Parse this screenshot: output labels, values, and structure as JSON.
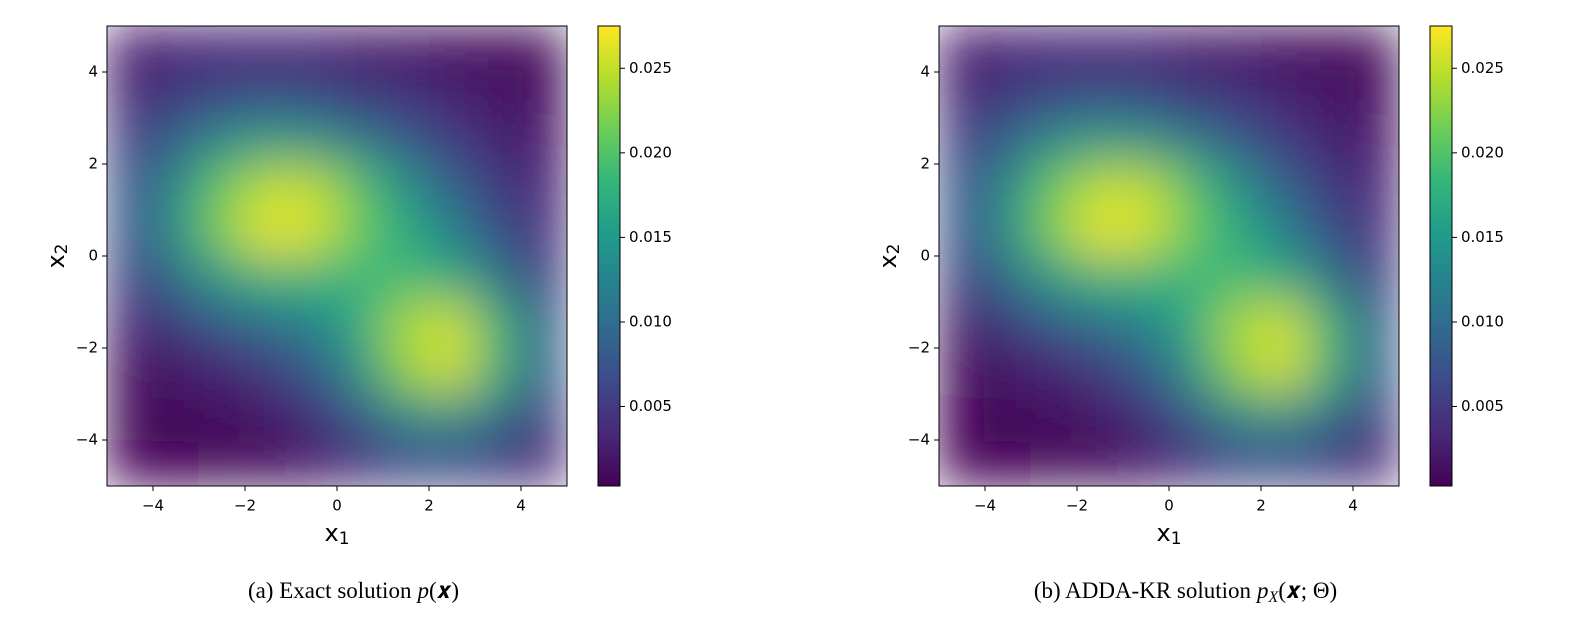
{
  "chart_data": [
    {
      "type": "heatmap",
      "xlabel": {
        "main": "x",
        "sub": "1"
      },
      "ylabel": {
        "main": "x",
        "sub": "2"
      },
      "caption": {
        "prefix": "(a) Exact solution",
        "math": "p",
        "math_end": "(𝒙)"
      },
      "xlim": [
        -5,
        5
      ],
      "ylim": [
        -5,
        5
      ],
      "xticks": [
        {
          "value": -4,
          "label": "−4"
        },
        {
          "value": -2,
          "label": "−2"
        },
        0,
        2,
        4
      ],
      "yticks": [
        {
          "value": -4,
          "label": "−4"
        },
        {
          "value": -2,
          "label": "−2"
        },
        0,
        2,
        4
      ],
      "x": [
        -4.5,
        -3.5,
        -2.5,
        -1.5,
        -0.5,
        0.5,
        1.5,
        2.5,
        3.5,
        4.5
      ],
      "y": [
        4.5,
        3.5,
        2.5,
        1.5,
        0.5,
        -0.5,
        -1.5,
        -2.5,
        -3.5,
        -4.5
      ],
      "z": [
        [
          0.002,
          0.003,
          0.003,
          0.003,
          0.003,
          0.002,
          0.002,
          0.001,
          0.001,
          0.001
        ],
        [
          0.003,
          0.005,
          0.006,
          0.007,
          0.006,
          0.005,
          0.004,
          0.003,
          0.002,
          0.001
        ],
        [
          0.005,
          0.009,
          0.013,
          0.015,
          0.014,
          0.011,
          0.008,
          0.005,
          0.003,
          0.002
        ],
        [
          0.007,
          0.013,
          0.021,
          0.025,
          0.025,
          0.02,
          0.014,
          0.009,
          0.005,
          0.003
        ],
        [
          0.007,
          0.014,
          0.022,
          0.027,
          0.026,
          0.021,
          0.017,
          0.012,
          0.007,
          0.004
        ],
        [
          0.005,
          0.01,
          0.015,
          0.018,
          0.018,
          0.018,
          0.019,
          0.017,
          0.011,
          0.005
        ],
        [
          0.003,
          0.005,
          0.008,
          0.01,
          0.012,
          0.017,
          0.024,
          0.026,
          0.018,
          0.008
        ],
        [
          0.001,
          0.002,
          0.003,
          0.005,
          0.008,
          0.014,
          0.023,
          0.026,
          0.018,
          0.008
        ],
        [
          0.001,
          0.001,
          0.001,
          0.002,
          0.004,
          0.008,
          0.013,
          0.014,
          0.01,
          0.005
        ],
        [
          0.0005,
          0.0005,
          0.001,
          0.001,
          0.002,
          0.004,
          0.006,
          0.006,
          0.005,
          0.003
        ]
      ],
      "clim": [
        0.0003,
        0.0275
      ],
      "cticks": [
        0.005,
        {
          "value": 0.01,
          "label": "0.010"
        },
        0.015,
        {
          "value": 0.02,
          "label": "0.020"
        },
        0.025
      ],
      "colormap": [
        "#440154",
        "#482878",
        "#3e4989",
        "#31688e",
        "#26828e",
        "#1f9e89",
        "#35b779",
        "#6ece58",
        "#b5de2b",
        "#fde725"
      ]
    },
    {
      "type": "heatmap",
      "xlabel": {
        "main": "x",
        "sub": "1"
      },
      "ylabel": {
        "main": "x",
        "sub": "2"
      },
      "caption": {
        "prefix": "(b) ADDA-KR solution",
        "math": "p",
        "math_sub": "X",
        "math_end": "(𝒙; Θ)"
      },
      "xlim": [
        -5,
        5
      ],
      "ylim": [
        -5,
        5
      ],
      "xticks": [
        {
          "value": -4,
          "label": "−4"
        },
        {
          "value": -2,
          "label": "−2"
        },
        0,
        2,
        4
      ],
      "yticks": [
        {
          "value": -4,
          "label": "−4"
        },
        {
          "value": -2,
          "label": "−2"
        },
        0,
        2,
        4
      ],
      "x": [
        -4.5,
        -3.5,
        -2.5,
        -1.5,
        -0.5,
        0.5,
        1.5,
        2.5,
        3.5,
        4.5
      ],
      "y": [
        4.5,
        3.5,
        2.5,
        1.5,
        0.5,
        -0.5,
        -1.5,
        -2.5,
        -3.5,
        -4.5
      ],
      "z": [
        [
          0.002,
          0.003,
          0.003,
          0.003,
          0.003,
          0.002,
          0.002,
          0.001,
          0.001,
          0.001
        ],
        [
          0.003,
          0.005,
          0.006,
          0.007,
          0.006,
          0.005,
          0.004,
          0.003,
          0.002,
          0.001
        ],
        [
          0.005,
          0.009,
          0.013,
          0.015,
          0.014,
          0.011,
          0.008,
          0.005,
          0.003,
          0.002
        ],
        [
          0.007,
          0.013,
          0.021,
          0.025,
          0.025,
          0.02,
          0.014,
          0.009,
          0.005,
          0.003
        ],
        [
          0.007,
          0.014,
          0.022,
          0.027,
          0.026,
          0.021,
          0.017,
          0.012,
          0.007,
          0.004
        ],
        [
          0.005,
          0.01,
          0.015,
          0.018,
          0.018,
          0.018,
          0.019,
          0.017,
          0.011,
          0.005
        ],
        [
          0.002,
          0.005,
          0.008,
          0.01,
          0.012,
          0.017,
          0.024,
          0.026,
          0.018,
          0.008
        ],
        [
          0.001,
          0.002,
          0.003,
          0.005,
          0.008,
          0.014,
          0.023,
          0.026,
          0.018,
          0.008
        ],
        [
          0.0005,
          0.001,
          0.001,
          0.002,
          0.004,
          0.008,
          0.013,
          0.014,
          0.01,
          0.005
        ],
        [
          0.0003,
          0.0005,
          0.001,
          0.001,
          0.002,
          0.004,
          0.006,
          0.006,
          0.005,
          0.003
        ]
      ],
      "clim": [
        0.0003,
        0.0275
      ],
      "cticks": [
        0.005,
        {
          "value": 0.01,
          "label": "0.010"
        },
        0.015,
        {
          "value": 0.02,
          "label": "0.020"
        },
        0.025
      ],
      "colormap": [
        "#440154",
        "#482878",
        "#3e4989",
        "#31688e",
        "#26828e",
        "#1f9e89",
        "#35b779",
        "#6ece58",
        "#b5de2b",
        "#fde725"
      ]
    }
  ]
}
